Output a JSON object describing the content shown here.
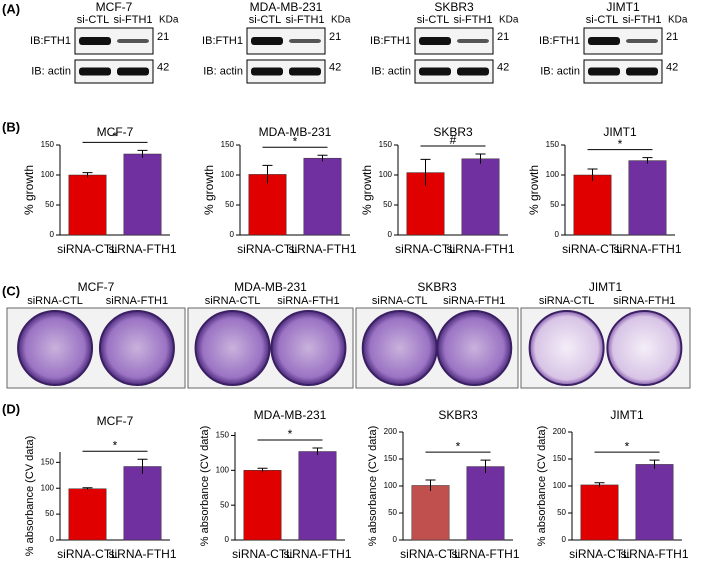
{
  "panel_labels": [
    "(A)",
    "(B)",
    "(C)",
    "(D)"
  ],
  "blots": [
    {
      "title": "MCF-7",
      "lanes": [
        "si-CTL",
        "si-FTH1"
      ],
      "unit": "KDa",
      "rows": [
        {
          "label": "IB:FTH1",
          "size": "21"
        },
        {
          "label": "IB: actin",
          "size": "42"
        }
      ]
    },
    {
      "title": "MDA-MB-231",
      "lanes": [
        "si-CTL",
        "si-FTH1"
      ],
      "unit": "KDa",
      "rows": [
        {
          "label": "IB:FTH1",
          "size": "21"
        },
        {
          "label": "IB: actin",
          "size": "42"
        }
      ]
    },
    {
      "title": "SKBR3",
      "lanes": [
        "si-CTL",
        "si-FTH1"
      ],
      "unit": "KDa",
      "rows": [
        {
          "label": "IB:FTH1",
          "size": "21"
        },
        {
          "label": "IB: actin",
          "size": "42"
        }
      ]
    },
    {
      "title": "JIMT1",
      "lanes": [
        "si-CTL",
        "si-FTH1"
      ],
      "unit": "KDa",
      "rows": [
        {
          "label": "IB:FTH1",
          "size": "21"
        },
        {
          "label": "IB: actin",
          "size": "42"
        }
      ]
    }
  ],
  "colonies": [
    {
      "title": "MCF-7",
      "wells": [
        "siRNA-CTL",
        "siRNA-FTH1"
      ]
    },
    {
      "title": "MDA-MB-231",
      "wells": [
        "siRNA-CTL",
        "siRNA-FTH1"
      ]
    },
    {
      "title": "SKBR3",
      "wells": [
        "siRNA-CTL",
        "siRNA-FTH1"
      ]
    },
    {
      "title": "JIMT1",
      "wells": [
        "siRNA-CTL",
        "siRNA-FTH1"
      ]
    }
  ],
  "chart_data": [
    {
      "type": "bar",
      "title": "MCF-7",
      "ylabel": "% growth",
      "categories": [
        "siRNA-CTL",
        "siRNA-FTH1"
      ],
      "values": [
        100,
        135
      ],
      "errors": [
        4,
        6
      ],
      "colors": [
        "#e00000",
        "#7030a0"
      ],
      "ylim": [
        0,
        150
      ],
      "yticks": [
        0,
        50,
        100,
        150
      ],
      "annotation": "*"
    },
    {
      "type": "bar",
      "title": "MDA-MB-231",
      "ylabel": "% growth",
      "categories": [
        "siRNA-CTL",
        "siRNA-FTH1"
      ],
      "values": [
        101,
        128
      ],
      "errors": [
        15,
        5
      ],
      "colors": [
        "#e00000",
        "#7030a0"
      ],
      "ylim": [
        0,
        150
      ],
      "yticks": [
        0,
        50,
        100,
        150
      ],
      "annotation": "*"
    },
    {
      "type": "bar",
      "title": "SKBR3",
      "ylabel": "% growth",
      "categories": [
        "siRNA-CTL",
        "siRNA-FTH1"
      ],
      "values": [
        104,
        127
      ],
      "errors": [
        22,
        8
      ],
      "colors": [
        "#e00000",
        "#7030a0"
      ],
      "ylim": [
        0,
        150
      ],
      "yticks": [
        0,
        50,
        100,
        150
      ],
      "annotation": "#"
    },
    {
      "type": "bar",
      "title": "JIMT1",
      "ylabel": "% growth",
      "categories": [
        "siRNA-CTL",
        "siRNA-FTH1"
      ],
      "values": [
        100,
        124
      ],
      "errors": [
        10,
        5
      ],
      "colors": [
        "#e00000",
        "#7030a0"
      ],
      "ylim": [
        0,
        150
      ],
      "yticks": [
        0,
        50,
        100,
        150
      ],
      "annotation": "*"
    },
    {
      "type": "bar",
      "title": "MCF-7",
      "ylabel": "% absorbance (CV data)",
      "categories": [
        "siRNA-CTL",
        "siRNA-FTH1"
      ],
      "values": [
        99,
        142
      ],
      "errors": [
        2,
        14
      ],
      "colors": [
        "#e00000",
        "#7030a0"
      ],
      "ylim": [
        0,
        170
      ],
      "yticks": [
        0,
        50,
        100,
        150
      ],
      "annotation": "*"
    },
    {
      "type": "bar",
      "title": "MDA-MB-231",
      "ylabel": "% absorbance (CV data)",
      "categories": [
        "siRNA-CTL",
        "siRNA-FTH1"
      ],
      "values": [
        100,
        127
      ],
      "errors": [
        3,
        5
      ],
      "colors": [
        "#e00000",
        "#7030a0"
      ],
      "ylim": [
        0,
        155
      ],
      "yticks": [
        0,
        50,
        100,
        150
      ],
      "annotation": "*"
    },
    {
      "type": "bar",
      "title": "SKBR3",
      "ylabel": "% absorbance (CV data)",
      "categories": [
        "siRNA-CTL",
        "siRNA-FTH1"
      ],
      "values": [
        101,
        136
      ],
      "errors": [
        10,
        12
      ],
      "colors": [
        "#c0504d",
        "#7030a0"
      ],
      "ylim": [
        0,
        200
      ],
      "yticks": [
        0,
        50,
        100,
        150,
        200
      ],
      "annotation": "*"
    },
    {
      "type": "bar",
      "title": "JIMT1",
      "ylabel": "% absorbance (CV data)",
      "categories": [
        "siRNA-CTL",
        "siRNA-FTH1"
      ],
      "values": [
        102,
        140
      ],
      "errors": [
        4,
        8
      ],
      "colors": [
        "#e00000",
        "#7030a0"
      ],
      "ylim": [
        0,
        200
      ],
      "yticks": [
        0,
        50,
        100,
        150,
        200
      ],
      "annotation": "*"
    }
  ]
}
